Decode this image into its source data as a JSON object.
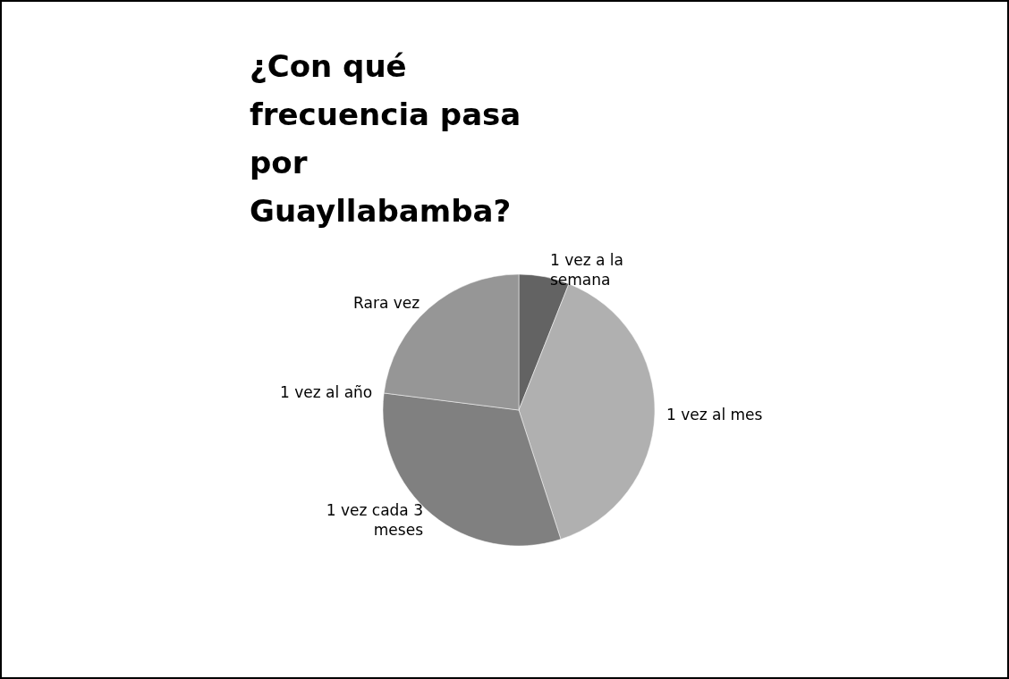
{
  "chart_data": {
    "type": "pie",
    "title": "¿Con qué frecuencia pasa por Guayllabamba?",
    "categories": [
      "1 vez a la semana",
      "1 vez al mes",
      "1 vez cada 3 meses",
      "1 vez al año",
      "Rara vez"
    ],
    "values": [
      6,
      39,
      32,
      0,
      23
    ],
    "colors": [
      "#636363",
      "#b0b0b0",
      "#808080",
      "#c8c8c8",
      "#969696"
    ],
    "legend": false
  }
}
